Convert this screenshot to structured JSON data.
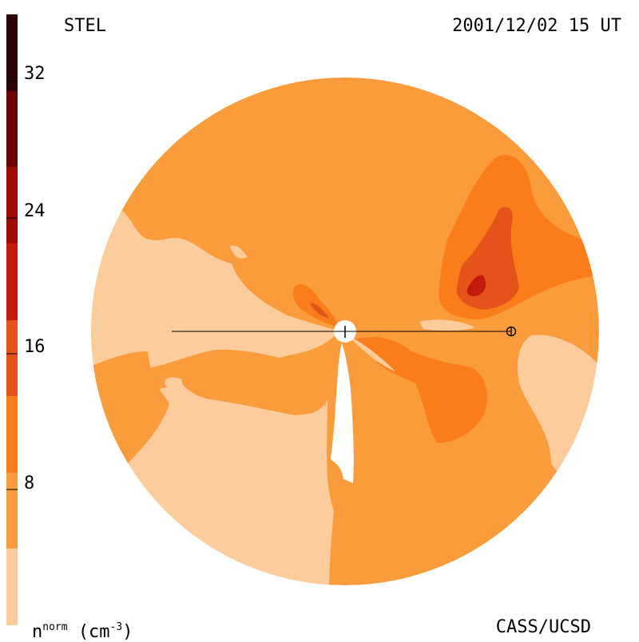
{
  "header": {
    "station": "STEL",
    "datetime": "2001/12/02 15 UT"
  },
  "footer": {
    "credit": "CASS/UCSD",
    "unit_base": "n",
    "unit_sup": "norm",
    "unit_paren": "(cm",
    "unit_exp": "-3",
    "unit_close": ")"
  },
  "colorbar": {
    "ticks": [
      "32",
      "24",
      "16",
      "8"
    ],
    "colors": [
      "#fccc9c",
      "#fb9c3c",
      "#fb7c1a",
      "#e4541a",
      "#c41a0e",
      "#9c0c04",
      "#6c0404",
      "#2c0404"
    ]
  },
  "palette": {
    "lightest": "#fccc9c",
    "base": "#fb9c3c",
    "mid": "#fb7c1a",
    "strong": "#e4541a",
    "deep": "#c41a0e"
  }
}
